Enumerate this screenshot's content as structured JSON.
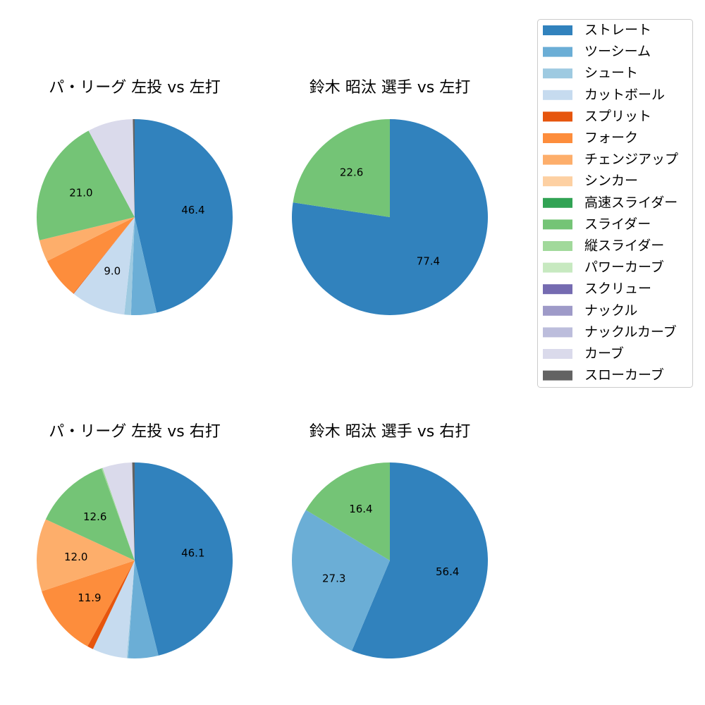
{
  "legend": {
    "entries": [
      {
        "label": "ストレート",
        "color": "#3182bd"
      },
      {
        "label": "ツーシーム",
        "color": "#6baed6"
      },
      {
        "label": "シュート",
        "color": "#9ecae1"
      },
      {
        "label": "カットボール",
        "color": "#c6dbef"
      },
      {
        "label": "スプリット",
        "color": "#e6550d"
      },
      {
        "label": "フォーク",
        "color": "#fd8d3c"
      },
      {
        "label": "チェンジアップ",
        "color": "#fdae6b"
      },
      {
        "label": "シンカー",
        "color": "#fdd0a2"
      },
      {
        "label": "高速スライダー",
        "color": "#31a354"
      },
      {
        "label": "スライダー",
        "color": "#74c476"
      },
      {
        "label": "縦スライダー",
        "color": "#a1d99b"
      },
      {
        "label": "パワーカーブ",
        "color": "#c7e9c0"
      },
      {
        "label": "スクリュー",
        "color": "#756bb1"
      },
      {
        "label": "ナックル",
        "color": "#9e9ac8"
      },
      {
        "label": "ナックルカーブ",
        "color": "#bcbddc"
      },
      {
        "label": "カーブ",
        "color": "#dadaeb"
      },
      {
        "label": "スローカーブ",
        "color": "#636363"
      }
    ]
  },
  "chart_data": [
    {
      "type": "pie",
      "title": "パ・リーグ 左投 vs 左打",
      "slices": [
        {
          "label": "ストレート",
          "value": 46.4,
          "color": "#3182bd",
          "show_label": true
        },
        {
          "label": "ツーシーム",
          "value": 4.2,
          "color": "#6baed6",
          "show_label": false
        },
        {
          "label": "シュート",
          "value": 1.1,
          "color": "#9ecae1",
          "show_label": false
        },
        {
          "label": "カットボール",
          "value": 9.0,
          "color": "#c6dbef",
          "show_label": true
        },
        {
          "label": "スプリット",
          "value": 0.1,
          "color": "#e6550d",
          "show_label": false
        },
        {
          "label": "フォーク",
          "value": 6.8,
          "color": "#fd8d3c",
          "show_label": false
        },
        {
          "label": "チェンジアップ",
          "value": 3.6,
          "color": "#fdae6b",
          "show_label": false
        },
        {
          "label": "スライダー",
          "value": 21.0,
          "color": "#74c476",
          "show_label": true
        },
        {
          "label": "カーブ",
          "value": 7.5,
          "color": "#dadaeb",
          "show_label": false
        },
        {
          "label": "スローカーブ",
          "value": 0.3,
          "color": "#636363",
          "show_label": false
        }
      ]
    },
    {
      "type": "pie",
      "title": "鈴木 昭汰 選手 vs 左打",
      "slices": [
        {
          "label": "ストレート",
          "value": 77.4,
          "color": "#3182bd",
          "show_label": true
        },
        {
          "label": "スライダー",
          "value": 22.6,
          "color": "#74c476",
          "show_label": true
        }
      ]
    },
    {
      "type": "pie",
      "title": "パ・リーグ 左投 vs 右打",
      "slices": [
        {
          "label": "ストレート",
          "value": 46.1,
          "color": "#3182bd",
          "show_label": true
        },
        {
          "label": "ツーシーム",
          "value": 5.0,
          "color": "#6baed6",
          "show_label": false
        },
        {
          "label": "シュート",
          "value": 0.2,
          "color": "#9ecae1",
          "show_label": false
        },
        {
          "label": "カットボール",
          "value": 5.7,
          "color": "#c6dbef",
          "show_label": false
        },
        {
          "label": "スプリット",
          "value": 1.0,
          "color": "#e6550d",
          "show_label": false
        },
        {
          "label": "フォーク",
          "value": 11.9,
          "color": "#fd8d3c",
          "show_label": true
        },
        {
          "label": "チェンジアップ",
          "value": 12.0,
          "color": "#fdae6b",
          "show_label": true
        },
        {
          "label": "スライダー",
          "value": 12.6,
          "color": "#74c476",
          "show_label": true
        },
        {
          "label": "縦スライダー",
          "value": 0.2,
          "color": "#a1d99b",
          "show_label": false
        },
        {
          "label": "カーブ",
          "value": 4.9,
          "color": "#dadaeb",
          "show_label": false
        },
        {
          "label": "スローカーブ",
          "value": 0.4,
          "color": "#636363",
          "show_label": false
        }
      ]
    },
    {
      "type": "pie",
      "title": "鈴木 昭汰 選手 vs 右打",
      "slices": [
        {
          "label": "ストレート",
          "value": 56.4,
          "color": "#3182bd",
          "show_label": true
        },
        {
          "label": "ツーシーム",
          "value": 27.3,
          "color": "#6baed6",
          "show_label": true
        },
        {
          "label": "スライダー",
          "value": 16.4,
          "color": "#74c476",
          "show_label": true
        }
      ]
    }
  ]
}
